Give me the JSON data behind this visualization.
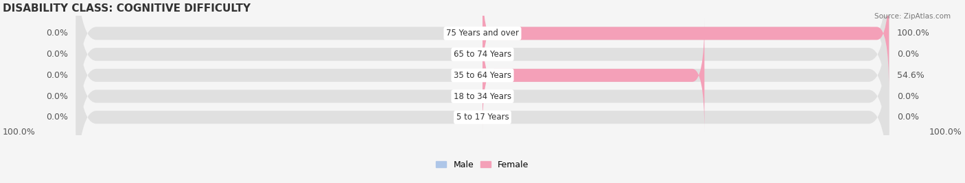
{
  "title": "DISABILITY CLASS: COGNITIVE DIFFICULTY",
  "source": "Source: ZipAtlas.com",
  "categories": [
    "5 to 17 Years",
    "18 to 34 Years",
    "35 to 64 Years",
    "65 to 74 Years",
    "75 Years and over"
  ],
  "male_values": [
    0.0,
    0.0,
    0.0,
    0.0,
    0.0
  ],
  "female_values": [
    0.0,
    0.0,
    54.6,
    0.0,
    100.0
  ],
  "male_left_values": [
    0.0,
    0.0,
    0.0,
    0.0,
    0.0
  ],
  "female_right_values": [
    0.0,
    0.0,
    54.6,
    0.0,
    100.0
  ],
  "male_color": "#aec6e8",
  "female_color": "#f4a0b8",
  "bar_bg_color": "#e8e8e8",
  "bar_label_left": [
    "0.0%",
    "0.0%",
    "0.0%",
    "0.0%",
    "0.0%"
  ],
  "bar_label_right": [
    "0.0%",
    "0.0%",
    "54.6%",
    "0.0%",
    "100.0%"
  ],
  "left_axis_label": "100.0%",
  "right_axis_label": "100.0%",
  "max_value": 100,
  "background_color": "#f5f5f5",
  "title_fontsize": 11,
  "label_fontsize": 9,
  "tick_fontsize": 9
}
